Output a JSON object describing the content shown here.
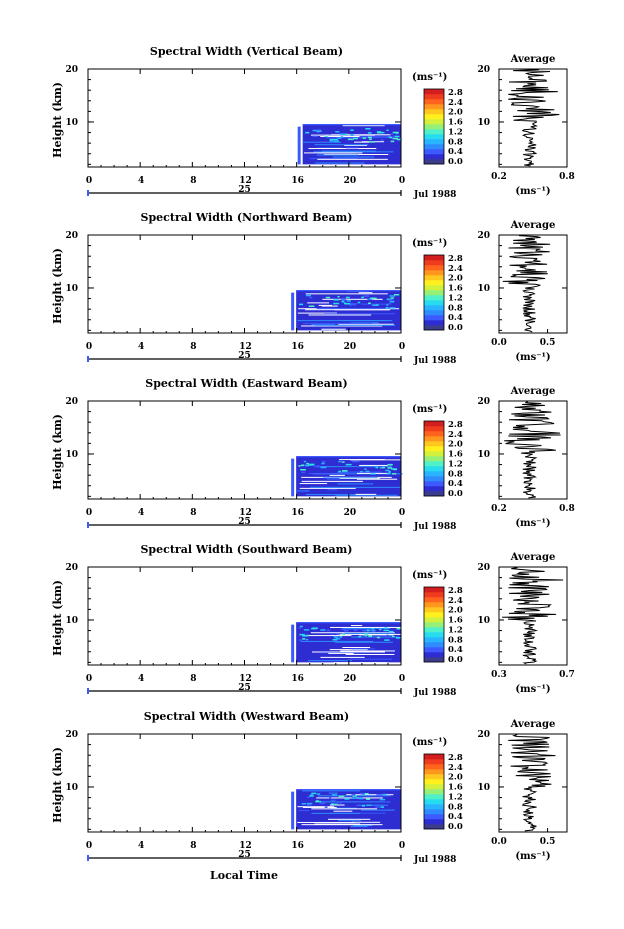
{
  "figure": {
    "x_axis_title": "Local Time",
    "date_label": "Jul 1988",
    "day_label": "25",
    "y_axis_title": "Height (km)",
    "colorbar_units": "(ms⁻¹)",
    "average_title": "Average"
  },
  "chart_data": [
    {
      "type": "heatmap",
      "title": "Spectral Width (Vertical Beam)",
      "xlabel": "Local Time",
      "ylabel": "Height (km)",
      "x_ticks": [
        "0",
        "4",
        "8",
        "12",
        "16",
        "20",
        "0"
      ],
      "y_ticks": [
        "20",
        "10"
      ],
      "xlim": [
        0,
        24
      ],
      "ylim": [
        1.5,
        20
      ],
      "data_region": {
        "time_start": 16.0,
        "time_end": 24.0,
        "height_min": 2.0,
        "height_max": 9.5
      },
      "colorbar": {
        "units": "(ms⁻¹)",
        "ticks": [
          "2.8",
          "2.4",
          "2.0",
          "1.6",
          "1.2",
          "0.8",
          "0.4",
          "0.0"
        ]
      },
      "average": {
        "title": "Average",
        "xlabel": "(ms⁻¹)",
        "x_ticks": [
          "0.2",
          "0.8"
        ],
        "xlim": [
          0.2,
          0.8
        ],
        "y_ticks": [
          "20",
          "10"
        ],
        "ylim": [
          1.5,
          20
        ]
      }
    },
    {
      "type": "heatmap",
      "title": "Spectral Width (Northward Beam)",
      "xlabel": "Local Time",
      "ylabel": "Height (km)",
      "x_ticks": [
        "0",
        "4",
        "8",
        "12",
        "16",
        "20",
        "0"
      ],
      "y_ticks": [
        "20",
        "10"
      ],
      "xlim": [
        0,
        24
      ],
      "ylim": [
        1.5,
        20
      ],
      "data_region": {
        "time_start": 15.5,
        "time_end": 24.0,
        "height_min": 2.0,
        "height_max": 9.5
      },
      "colorbar": {
        "units": "(ms⁻¹)",
        "ticks": [
          "2.8",
          "2.4",
          "2.0",
          "1.6",
          "1.2",
          "0.8",
          "0.4",
          "0.0"
        ]
      },
      "average": {
        "title": "Average",
        "xlabel": "(ms⁻¹)",
        "x_ticks": [
          "0.0",
          "0.5"
        ],
        "xlim": [
          0.0,
          0.7
        ],
        "y_ticks": [
          "20",
          "10"
        ],
        "ylim": [
          1.5,
          20
        ]
      }
    },
    {
      "type": "heatmap",
      "title": "Spectral Width (Eastward Beam)",
      "xlabel": "Local Time",
      "ylabel": "Height (km)",
      "x_ticks": [
        "0",
        "4",
        "8",
        "12",
        "16",
        "20",
        "0"
      ],
      "y_ticks": [
        "20",
        "10"
      ],
      "xlim": [
        0,
        24
      ],
      "ylim": [
        1.5,
        20
      ],
      "data_region": {
        "time_start": 15.5,
        "time_end": 24.0,
        "height_min": 2.0,
        "height_max": 9.5
      },
      "colorbar": {
        "units": "(ms⁻¹)",
        "ticks": [
          "2.8",
          "2.4",
          "2.0",
          "1.6",
          "1.2",
          "0.8",
          "0.4",
          "0.0"
        ]
      },
      "average": {
        "title": "Average",
        "xlabel": "(ms⁻¹)",
        "x_ticks": [
          "0.2",
          "0.8"
        ],
        "xlim": [
          0.2,
          0.8
        ],
        "y_ticks": [
          "20",
          "10"
        ],
        "ylim": [
          1.5,
          20
        ]
      }
    },
    {
      "type": "heatmap",
      "title": "Spectral Width (Southward Beam)",
      "xlabel": "Local Time",
      "ylabel": "Height (km)",
      "x_ticks": [
        "0",
        "4",
        "8",
        "12",
        "16",
        "20",
        "0"
      ],
      "y_ticks": [
        "20",
        "10"
      ],
      "xlim": [
        0,
        24
      ],
      "ylim": [
        1.5,
        20
      ],
      "data_region": {
        "time_start": 15.5,
        "time_end": 24.0,
        "height_min": 2.0,
        "height_max": 9.5
      },
      "colorbar": {
        "units": "(ms⁻¹)",
        "ticks": [
          "2.8",
          "2.4",
          "2.0",
          "1.6",
          "1.2",
          "0.8",
          "0.4",
          "0.0"
        ]
      },
      "average": {
        "title": "Average",
        "xlabel": "(ms⁻¹)",
        "x_ticks": [
          "0.3",
          "0.7"
        ],
        "xlim": [
          0.3,
          0.7
        ],
        "y_ticks": [
          "20",
          "10"
        ],
        "ylim": [
          1.5,
          20
        ]
      }
    },
    {
      "type": "heatmap",
      "title": "Spectral Width (Westward Beam)",
      "xlabel": "Local Time",
      "ylabel": "Height (km)",
      "x_ticks": [
        "0",
        "4",
        "8",
        "12",
        "16",
        "20",
        "0"
      ],
      "y_ticks": [
        "20",
        "10"
      ],
      "xlim": [
        0,
        24
      ],
      "ylim": [
        1.5,
        20
      ],
      "data_region": {
        "time_start": 15.5,
        "time_end": 24.0,
        "height_min": 2.0,
        "height_max": 9.5
      },
      "colorbar": {
        "units": "(ms⁻¹)",
        "ticks": [
          "2.8",
          "2.4",
          "2.0",
          "1.6",
          "1.2",
          "0.8",
          "0.4",
          "0.0"
        ]
      },
      "average": {
        "title": "Average",
        "xlabel": "(ms⁻¹)",
        "x_ticks": [
          "0.0",
          "0.5"
        ],
        "xlim": [
          0.0,
          0.7
        ],
        "y_ticks": [
          "20",
          "10"
        ],
        "ylim": [
          1.5,
          20
        ]
      }
    }
  ],
  "colorbar_colors": [
    "#3c3c8c",
    "#2d2dd2",
    "#3c5aff",
    "#2e8cff",
    "#28b4ff",
    "#28dcf0",
    "#50f0c8",
    "#96f078",
    "#d2f03c",
    "#fff01e",
    "#ffc81e",
    "#ff961e",
    "#ff641e",
    "#f03c1e",
    "#d21e1e"
  ]
}
